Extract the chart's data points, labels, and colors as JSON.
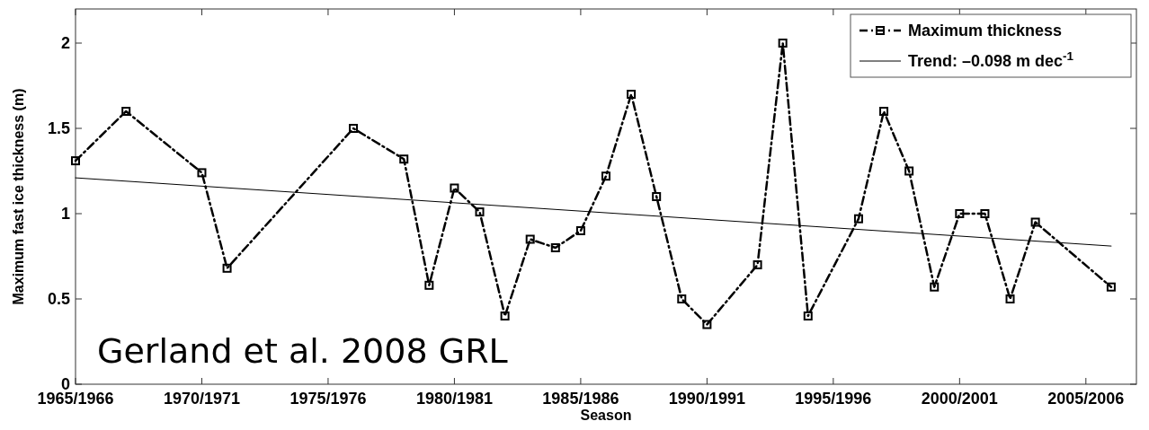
{
  "chart_data": {
    "type": "line",
    "xlabel": "Season",
    "ylabel": "Maximum fast ice thickness (m)",
    "categories": [
      "1965/1966",
      null,
      null,
      null,
      null,
      "1970/1971",
      null,
      null,
      null,
      null,
      "1975/1976",
      null,
      null,
      null,
      null,
      "1980/1981",
      null,
      null,
      null,
      null,
      "1985/1986",
      null,
      null,
      null,
      null,
      "1990/1991",
      null,
      null,
      null,
      null,
      "1995/1996",
      null,
      null,
      null,
      null,
      "2000/2001",
      null,
      null,
      null,
      null,
      "2005/2006",
      null
    ],
    "ylim": [
      0,
      2.2
    ],
    "yticks": [
      0,
      0.5,
      1,
      1.5,
      2
    ],
    "grid": false,
    "legend": "top right",
    "series": [
      {
        "name": "Maximum thickness",
        "color": "#000000",
        "marker": "square",
        "line_style": "dashed",
        "values": [
          1.31,
          null,
          1.6,
          null,
          null,
          1.24,
          0.68,
          null,
          null,
          null,
          null,
          1.5,
          null,
          1.32,
          0.58,
          1.15,
          1.01,
          0.4,
          0.85,
          0.8,
          0.9,
          1.22,
          1.7,
          1.1,
          0.5,
          0.35,
          null,
          0.7,
          2.0,
          0.4,
          null,
          0.97,
          1.6,
          1.25,
          0.57,
          1.0,
          1.0,
          0.5,
          0.95,
          null,
          null,
          0.57
        ]
      },
      {
        "name": "Trend: –0.098 m dec$^{-1}$",
        "color": "#000000",
        "marker": "none",
        "line_style": "solid",
        "values": [
          1.21,
          null,
          null,
          null,
          null,
          null,
          null,
          null,
          null,
          null,
          null,
          null,
          null,
          null,
          null,
          null,
          null,
          null,
          null,
          null,
          null,
          null,
          null,
          null,
          null,
          null,
          null,
          null,
          null,
          null,
          null,
          null,
          null,
          null,
          null,
          null,
          null,
          null,
          null,
          null,
          null,
          0.81
        ]
      }
    ],
    "annotations": [
      "Gerland et al. 2008 GRL"
    ]
  }
}
